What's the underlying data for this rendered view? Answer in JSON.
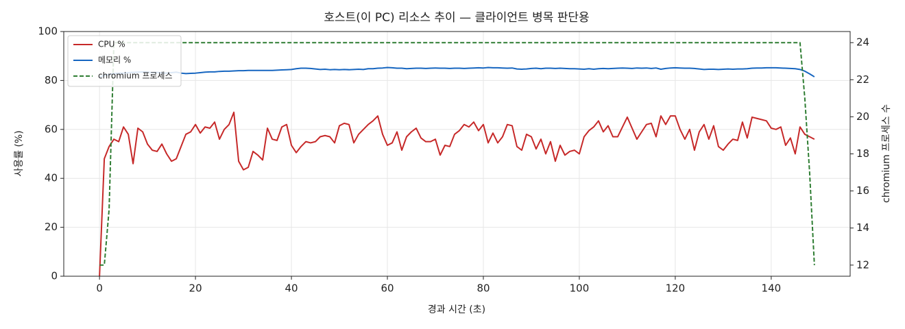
{
  "chart_data": {
    "type": "line",
    "title": "호스트(이 PC) 리소스 추이 — 클라이언트 병목 판단용",
    "x_label": "경과 시간 (초)",
    "y_label": "사용률 (%)",
    "y2_label": "chromium 프로세스 수",
    "x": [
      0,
      1,
      2,
      3,
      4,
      5,
      6,
      7,
      8,
      9,
      10,
      11,
      12,
      13,
      14,
      15,
      16,
      17,
      18,
      19,
      20,
      21,
      22,
      23,
      24,
      25,
      26,
      27,
      28,
      29,
      30,
      31,
      32,
      33,
      34,
      35,
      36,
      37,
      38,
      39,
      40,
      41,
      42,
      43,
      44,
      45,
      46,
      47,
      48,
      49,
      50,
      51,
      52,
      53,
      54,
      55,
      56,
      57,
      58,
      59,
      60,
      61,
      62,
      63,
      64,
      65,
      66,
      67,
      68,
      69,
      70,
      71,
      72,
      73,
      74,
      75,
      76,
      77,
      78,
      79,
      80,
      81,
      82,
      83,
      84,
      85,
      86,
      87,
      88,
      89,
      90,
      91,
      92,
      93,
      94,
      95,
      96,
      97,
      98,
      99,
      100,
      101,
      102,
      103,
      104,
      105,
      106,
      107,
      108,
      109,
      110,
      111,
      112,
      113,
      114,
      115,
      116,
      117,
      118,
      119,
      120,
      121,
      122,
      123,
      124,
      125,
      126,
      127,
      128,
      129,
      130,
      131,
      132,
      133,
      134,
      135,
      136,
      137,
      138,
      139,
      140,
      141,
      142,
      143,
      144,
      145,
      146,
      147,
      148,
      149
    ],
    "series": [
      {
        "name": "CPU %",
        "color": "#c62828",
        "dash": false,
        "values": [
          0,
          48,
          53,
          56,
          55,
          61,
          58,
          46,
          60.5,
          59,
          54,
          51.5,
          51,
          54,
          50,
          47,
          48,
          53,
          58,
          59,
          62,
          58.5,
          61,
          60.5,
          63,
          56,
          60,
          62,
          67,
          47,
          43.5,
          44.5,
          51,
          49.5,
          47.5,
          60.5,
          56,
          55.5,
          61,
          62,
          53.5,
          50.5,
          53,
          55,
          54.5,
          55,
          57,
          57.5,
          57,
          54.5,
          61.5,
          62.5,
          62,
          54.5,
          58,
          60,
          62,
          63.5,
          65.5,
          58,
          53.5,
          54.5,
          59,
          51.5,
          57,
          59,
          60.5,
          56.5,
          55,
          55,
          56,
          49.5,
          53.5,
          53,
          58,
          59.5,
          62,
          61,
          63,
          59.5,
          62,
          54.5,
          58.5,
          54.5,
          57,
          62,
          61.5,
          53,
          51.5,
          58,
          57,
          52,
          56,
          50,
          55,
          47,
          53.5,
          49.5,
          51,
          51.5,
          50,
          57,
          59.5,
          61,
          63.5,
          59,
          61.5,
          57,
          57,
          61,
          65,
          60.5,
          56,
          59,
          62,
          62.5,
          57,
          65.5,
          62,
          65.5,
          65.5,
          60,
          56,
          60,
          51.5,
          59,
          62,
          56,
          61.5,
          53,
          51.5,
          54,
          56,
          55.5,
          63,
          56.5,
          65,
          64.5,
          64,
          63.5,
          60.5,
          60,
          61,
          53.5,
          56.5,
          50,
          61,
          58,
          57,
          56
        ]
      },
      {
        "name": "메모리 %",
        "color": "#1565c0",
        "dash": false,
        "values": [
          81.5,
          82,
          82.5,
          82.8,
          83,
          83,
          83.2,
          83.3,
          83.4,
          83.5,
          83.4,
          83.2,
          83.3,
          83.1,
          83,
          83.2,
          83.4,
          83,
          82.8,
          82.9,
          83,
          83.2,
          83.4,
          83.5,
          83.5,
          83.7,
          83.8,
          83.8,
          83.9,
          84,
          84,
          84.1,
          84.1,
          84.1,
          84.1,
          84.1,
          84.1,
          84.2,
          84.3,
          84.4,
          84.5,
          84.8,
          85,
          85,
          84.9,
          84.7,
          84.5,
          84.6,
          84.4,
          84.5,
          84.4,
          84.5,
          84.4,
          84.5,
          84.6,
          84.5,
          84.8,
          84.8,
          85,
          85.1,
          85.3,
          85.2,
          85,
          85,
          84.8,
          84.9,
          85,
          85,
          84.9,
          85,
          85.1,
          85,
          85,
          84.9,
          85,
          85,
          84.9,
          85,
          85.1,
          85.2,
          85.1,
          85.3,
          85.2,
          85.2,
          85.1,
          85,
          85.1,
          84.7,
          84.6,
          84.7,
          84.9,
          85,
          84.8,
          85,
          85,
          84.9,
          85,
          84.9,
          84.8,
          84.8,
          84.7,
          84.6,
          84.8,
          84.6,
          84.8,
          84.9,
          84.8,
          84.9,
          85,
          85.1,
          85,
          84.9,
          85.1,
          85,
          85.1,
          84.9,
          85.1,
          84.6,
          84.9,
          85.1,
          85.2,
          85.1,
          85,
          85,
          84.9,
          84.7,
          84.5,
          84.6,
          84.6,
          84.5,
          84.6,
          84.7,
          84.6,
          84.7,
          84.7,
          84.8,
          85,
          85.1,
          85.1,
          85.2,
          85.2,
          85.2,
          85.1,
          85,
          84.9,
          84.8,
          84.5,
          83.8,
          82.7,
          81.5
        ]
      },
      {
        "name": "chromium 프로세스",
        "color": "#2e7d32",
        "dash": true,
        "axis": "y2",
        "values": [
          12,
          12,
          15,
          24,
          24,
          24,
          24,
          24,
          24,
          24,
          24,
          24,
          24,
          24,
          24,
          24,
          24,
          24,
          24,
          24,
          24,
          24,
          24,
          24,
          24,
          24,
          24,
          24,
          24,
          24,
          24,
          24,
          24,
          24,
          24,
          24,
          24,
          24,
          24,
          24,
          24,
          24,
          24,
          24,
          24,
          24,
          24,
          24,
          24,
          24,
          24,
          24,
          24,
          24,
          24,
          24,
          24,
          24,
          24,
          24,
          24,
          24,
          24,
          24,
          24,
          24,
          24,
          24,
          24,
          24,
          24,
          24,
          24,
          24,
          24,
          24,
          24,
          24,
          24,
          24,
          24,
          24,
          24,
          24,
          24,
          24,
          24,
          24,
          24,
          24,
          24,
          24,
          24,
          24,
          24,
          24,
          24,
          24,
          24,
          24,
          24,
          24,
          24,
          24,
          24,
          24,
          24,
          24,
          24,
          24,
          24,
          24,
          24,
          24,
          24,
          24,
          24,
          24,
          24,
          24,
          24,
          24,
          24,
          24,
          24,
          24,
          24,
          24,
          24,
          24,
          24,
          24,
          24,
          24,
          24,
          24,
          24,
          24,
          24,
          24,
          24,
          24,
          24,
          24,
          24,
          24,
          24,
          21,
          17,
          12
        ]
      }
    ],
    "xlim": [
      -7.45,
      156.45
    ],
    "xticks": [
      0,
      20,
      40,
      60,
      80,
      100,
      120,
      140
    ],
    "ylim": [
      0,
      100
    ],
    "yticks": [
      0,
      20,
      40,
      60,
      80,
      100
    ],
    "y2lim": [
      11.4,
      24.6
    ],
    "y2ticks": [
      12,
      14,
      16,
      18,
      20,
      22,
      24
    ],
    "grid": true,
    "legend": "upper left"
  }
}
